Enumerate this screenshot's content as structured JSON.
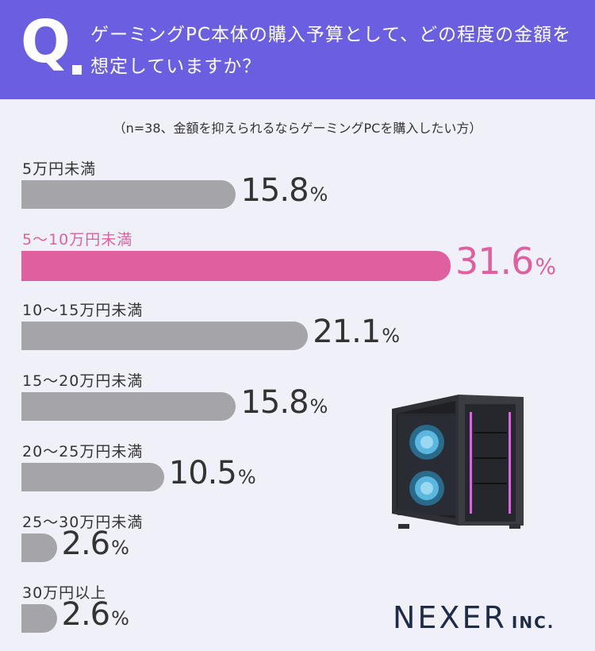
{
  "header": {
    "q_mark": "Q",
    "question": "ゲーミングPC本体の購入予算として、どの程度の金額を想定していますか？"
  },
  "sample_note": "（n=38、金額を抑えられるならゲーミングPCを購入したい方）",
  "chart_data": {
    "type": "bar",
    "orientation": "horizontal",
    "categories": [
      "5万円未満",
      "5〜10万円未満",
      "10〜15万円未満",
      "15〜20万円未満",
      "20〜25万円未満",
      "25〜30万円未満",
      "30万円以上"
    ],
    "values": [
      15.8,
      31.6,
      21.1,
      15.8,
      10.5,
      2.6,
      2.6
    ],
    "value_labels": [
      "15.8",
      "31.6",
      "21.1",
      "15.8",
      "10.5",
      "2.6",
      "2.6"
    ],
    "unit": "%",
    "highlight_index": 1,
    "colors": {
      "default": "#a4a4a9",
      "highlight": "#e0609f"
    },
    "title": "",
    "xlabel": "",
    "ylabel": ""
  },
  "logo": {
    "main": "NEXER",
    "sub": "INC."
  },
  "illustration": {
    "icon": "gaming-pc-tower-icon"
  },
  "colors": {
    "header_bg": "#6a5fe0",
    "page_bg": "#f0f0f8",
    "text": "#333333",
    "logo": "#1d2d47"
  }
}
